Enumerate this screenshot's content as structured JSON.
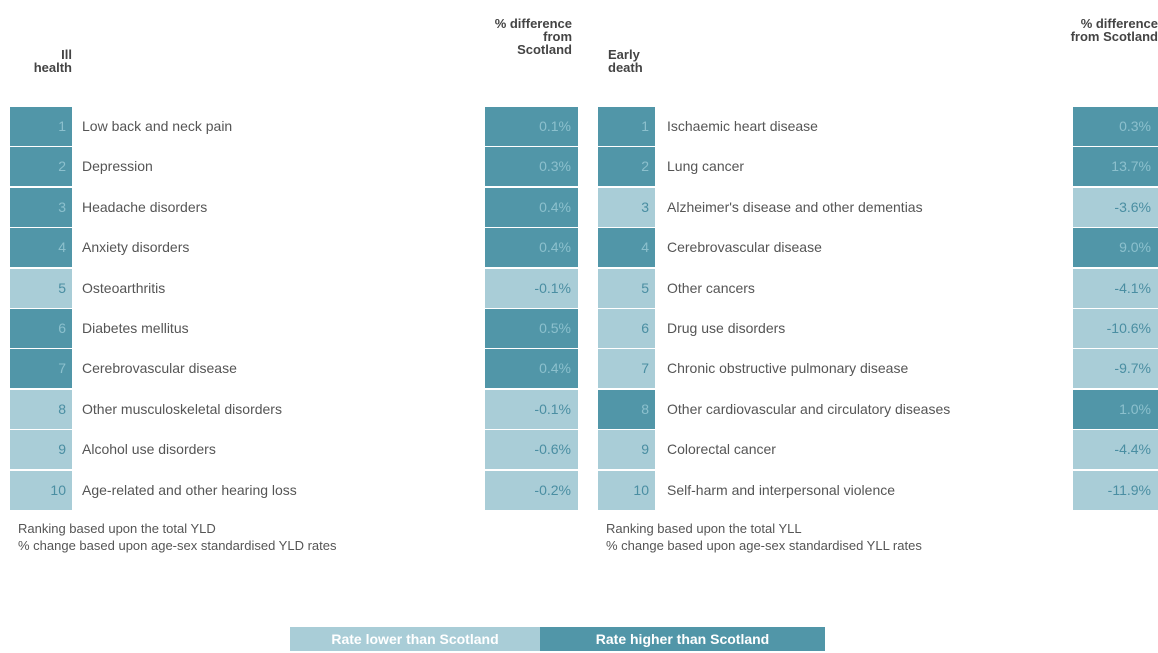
{
  "tables": [
    {
      "rank_header": "Ill health",
      "diff_header": "% difference from Scotland",
      "rows": [
        {
          "rank": 1,
          "cause": "Low back and neck pain",
          "diff": "0.1%"
        },
        {
          "rank": 2,
          "cause": "Depression",
          "diff": "0.3%"
        },
        {
          "rank": 3,
          "cause": "Headache disorders",
          "diff": "0.4%"
        },
        {
          "rank": 4,
          "cause": "Anxiety disorders",
          "diff": "0.4%"
        },
        {
          "rank": 5,
          "cause": "Osteoarthritis",
          "diff": "-0.1%"
        },
        {
          "rank": 6,
          "cause": "Diabetes mellitus",
          "diff": "0.5%"
        },
        {
          "rank": 7,
          "cause": "Cerebrovascular disease",
          "diff": "0.4%"
        },
        {
          "rank": 8,
          "cause": "Other musculoskeletal disorders",
          "diff": "-0.1%"
        },
        {
          "rank": 9,
          "cause": "Alcohol use disorders",
          "diff": "-0.6%"
        },
        {
          "rank": 10,
          "cause": "Age-related and other hearing loss",
          "diff": "-0.2%"
        }
      ],
      "notes": [
        "Ranking based upon the total YLD",
        "% change based upon age-sex standardised YLD rates"
      ]
    },
    {
      "rank_header": "Early death",
      "diff_header": "% difference from Scotland",
      "rows": [
        {
          "rank": 1,
          "cause": "Ischaemic heart disease",
          "diff": "0.3%"
        },
        {
          "rank": 2,
          "cause": "Lung cancer",
          "diff": "13.7%"
        },
        {
          "rank": 3,
          "cause": "Alzheimer's disease and other dementias",
          "diff": "-3.6%"
        },
        {
          "rank": 4,
          "cause": "Cerebrovascular disease",
          "diff": "9.0%"
        },
        {
          "rank": 5,
          "cause": "Other cancers",
          "diff": "-4.1%"
        },
        {
          "rank": 6,
          "cause": "Drug use disorders",
          "diff": "-10.6%"
        },
        {
          "rank": 7,
          "cause": "Chronic obstructive pulmonary disease",
          "diff": "-9.7%"
        },
        {
          "rank": 8,
          "cause": "Other cardiovascular and circulatory diseases",
          "diff": "1.0%"
        },
        {
          "rank": 9,
          "cause": "Colorectal cancer",
          "diff": "-4.4%"
        },
        {
          "rank": 10,
          "cause": "Self-harm and interpersonal violence",
          "diff": "-11.9%"
        }
      ],
      "notes": [
        "Ranking based upon the total YLL",
        "% change based upon age-sex standardised YLL rates"
      ]
    }
  ],
  "legend": [
    {
      "label": "Rate lower than Scotland",
      "color": "#a9cdd7"
    },
    {
      "label": "Rate higher than Scotland",
      "color": "#5196a8"
    }
  ]
}
